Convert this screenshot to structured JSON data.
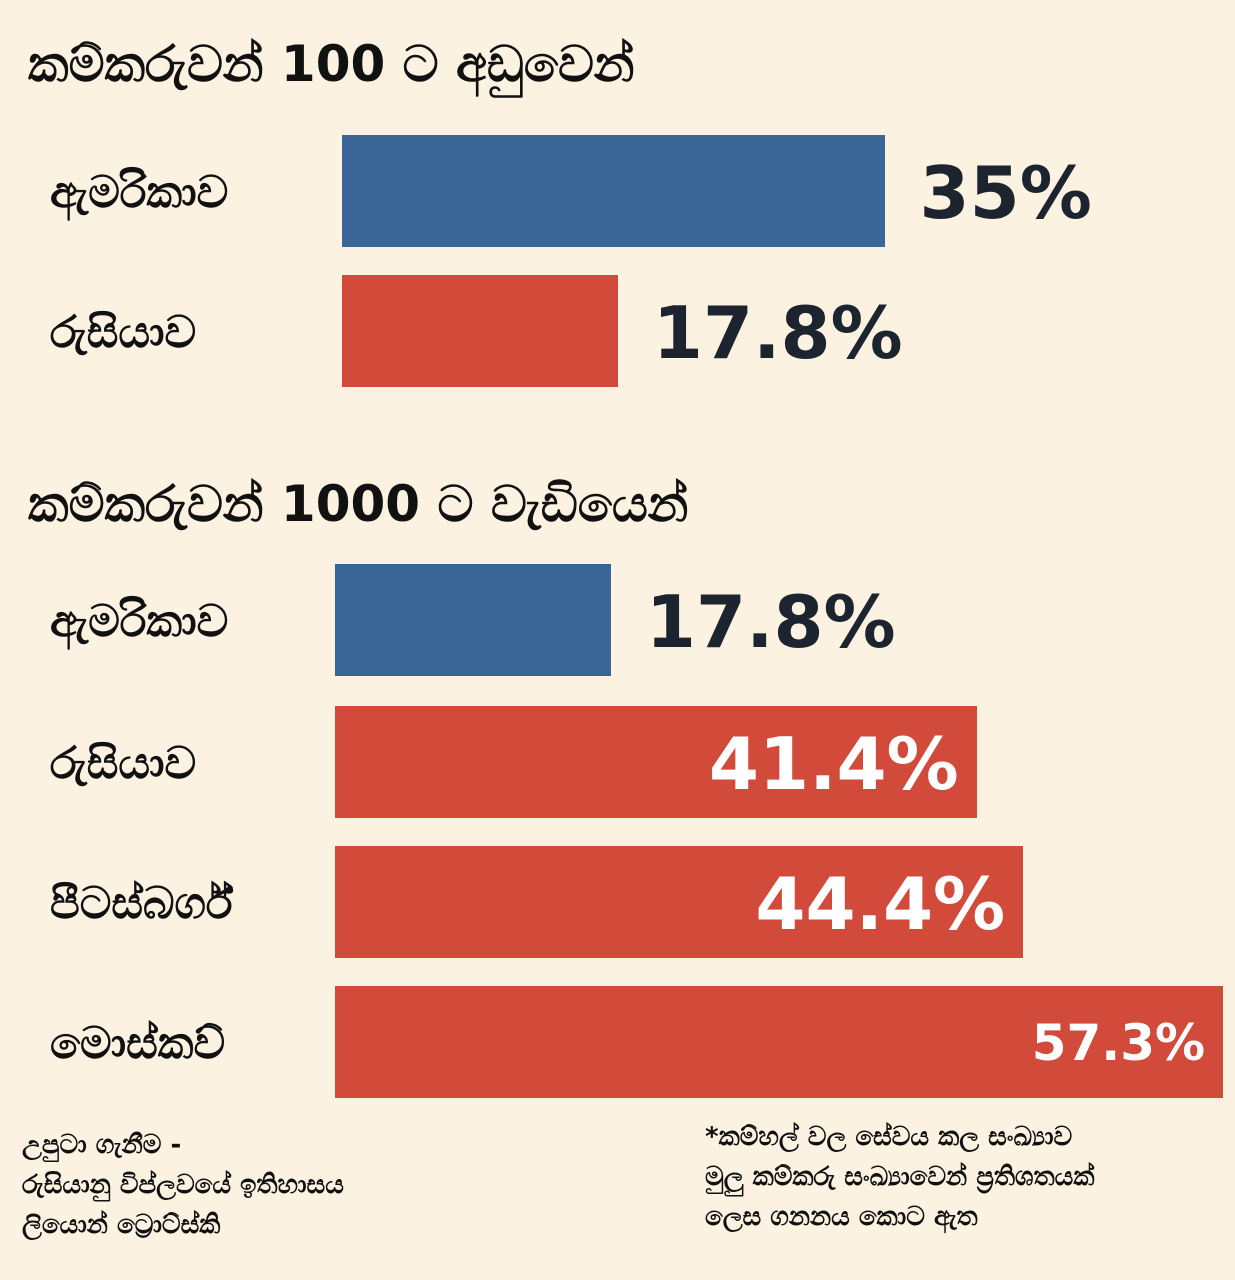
{
  "colors": {
    "usa": "#3a6597",
    "russia": "#d14a3a",
    "background": "#fcf2e2"
  },
  "chart_data": [
    {
      "type": "bar",
      "orientation": "horizontal",
      "title": "කම්කරුවන් 100 ට අඩුවෙන්",
      "categories": [
        "ඇමරිකාව",
        "රුසියාව"
      ],
      "values": [
        35,
        17.8
      ],
      "value_labels": [
        "35%",
        "17.8%"
      ],
      "unit": "%"
    },
    {
      "type": "bar",
      "orientation": "horizontal",
      "title": "කම්කරුවන් 1000 ට වැඩියෙන්",
      "categories": [
        "ඇමරිකාව",
        "රුසියාව",
        "පීටස්බර්ග්",
        "මොස්කව්"
      ],
      "values": [
        17.8,
        41.4,
        44.4,
        57.3
      ],
      "value_labels": [
        "17.8%",
        "41.4%",
        "44.4%",
        "57.3%"
      ],
      "unit": "%"
    }
  ],
  "footer": {
    "source": [
      "උපුටා ගැනීම -",
      "රුසියානු විප්ලවයේ ඉතිහාසය",
      "ලියොන් ට්‍රොට්ස්කි"
    ],
    "note": [
      "*කම්හල් වල සේවය කල සංඛ්‍යාව",
      "මුලු කම්කරු සංඛ්‍යාවෙන් ප්‍රතිශතයක්",
      "ලෙස ගනනය කොට ඇත"
    ]
  }
}
